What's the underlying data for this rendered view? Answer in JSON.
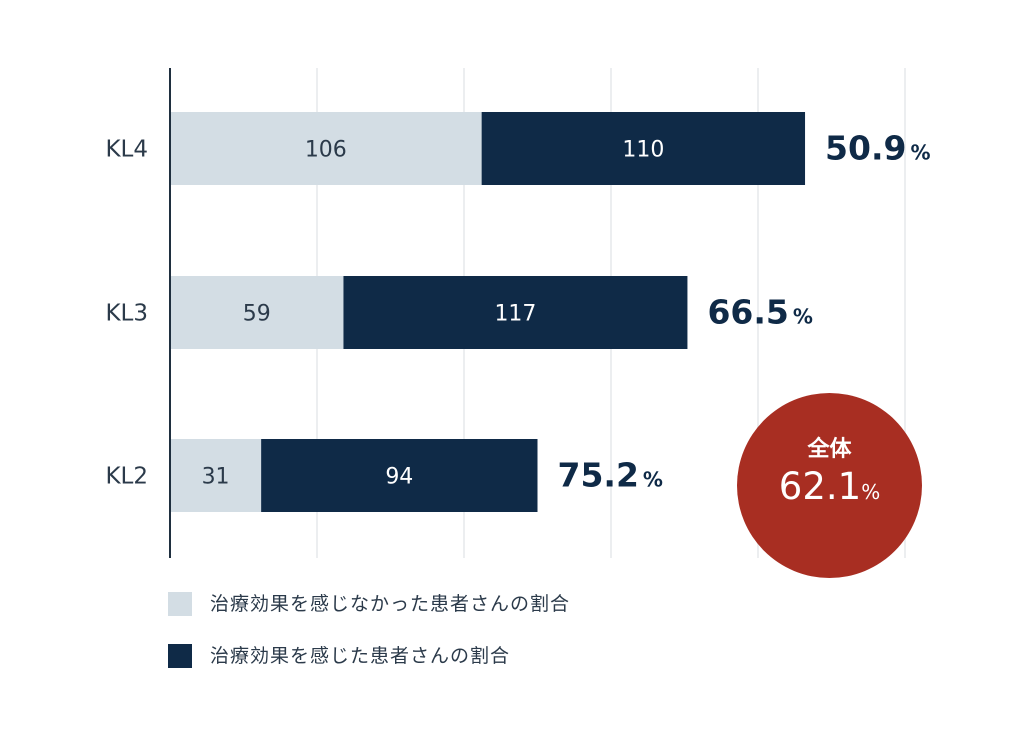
{
  "chart_data": {
    "type": "bar",
    "orientation": "horizontal",
    "stacked": true,
    "categories": [
      "KL4",
      "KL3",
      "KL2"
    ],
    "series": [
      {
        "name": "治療効果を感じなかった患者さんの割合",
        "values": [
          106,
          59,
          31
        ],
        "color": "#d3dde4"
      },
      {
        "name": "治療効果を感じた患者さんの割合",
        "values": [
          110,
          117,
          94
        ],
        "color": "#0f2a47"
      }
    ],
    "percent_labels": [
      "50.9",
      "66.5",
      "75.2"
    ],
    "percent_unit": "%",
    "xlim": [
      0,
      250
    ],
    "grid": true,
    "legend": "bottom-left"
  },
  "summary": {
    "label": "全体",
    "value": "62.1",
    "unit": "%",
    "color": "#a82e22"
  },
  "colors": {
    "axis": "#1f2f3f",
    "grid": "#e6e9ec",
    "percent_text": "#0f2a47",
    "category_text": "#2b3a4a"
  }
}
